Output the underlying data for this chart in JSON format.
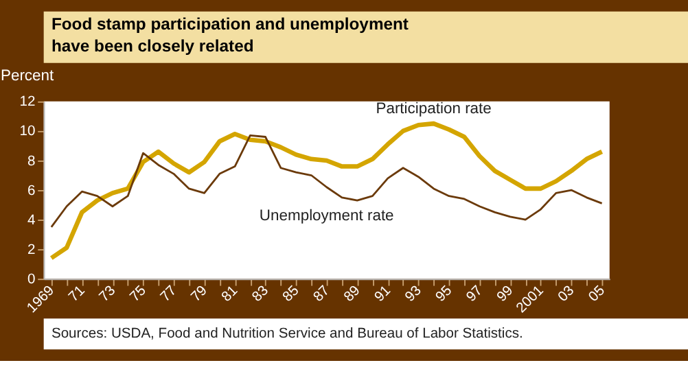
{
  "chart_data": {
    "type": "line",
    "title": "Food stamp participation and unemployment have been closely related",
    "ylabel": "Percent",
    "categories": [
      "1969",
      null,
      "71",
      null,
      "73",
      null,
      "75",
      null,
      "77",
      null,
      "79",
      null,
      "81",
      null,
      "83",
      null,
      "85",
      null,
      "87",
      null,
      "89",
      null,
      "91",
      null,
      "93",
      null,
      "95",
      null,
      "97",
      null,
      "99",
      null,
      "2001",
      null,
      "03",
      null,
      "05"
    ],
    "series": [
      {
        "name": "Participation rate",
        "color": "#d4a500",
        "values": [
          1.4,
          2.1,
          4.5,
          5.3,
          5.8,
          6.1,
          7.9,
          8.6,
          7.8,
          7.2,
          7.9,
          9.3,
          9.8,
          9.4,
          9.3,
          8.9,
          8.4,
          8.1,
          8.0,
          7.6,
          7.6,
          8.1,
          9.1,
          10.0,
          10.4,
          10.5,
          10.1,
          9.6,
          8.3,
          7.3,
          6.7,
          6.1,
          6.1,
          6.6,
          7.3,
          8.1,
          8.6
        ]
      },
      {
        "name": "Unemployment rate",
        "color": "#6b3a0a",
        "values": [
          3.5,
          4.9,
          5.9,
          5.6,
          4.9,
          5.6,
          8.5,
          7.7,
          7.1,
          6.1,
          5.8,
          7.1,
          7.6,
          9.7,
          9.6,
          7.5,
          7.2,
          7.0,
          6.2,
          5.5,
          5.3,
          5.6,
          6.8,
          7.5,
          6.9,
          6.1,
          5.6,
          5.4,
          4.9,
          4.5,
          4.2,
          4.0,
          4.7,
          5.8,
          6.0,
          5.5,
          5.1
        ]
      }
    ],
    "ylim": [
      0,
      12
    ],
    "yticks": [
      0,
      2,
      4,
      6,
      8,
      10,
      12
    ],
    "grid": false,
    "legend": false,
    "marker": "none",
    "line_style": "solid",
    "annotations": [
      "Sources: USDA, Food and Nutrition Service and Bureau of Labor Statistics."
    ]
  }
}
